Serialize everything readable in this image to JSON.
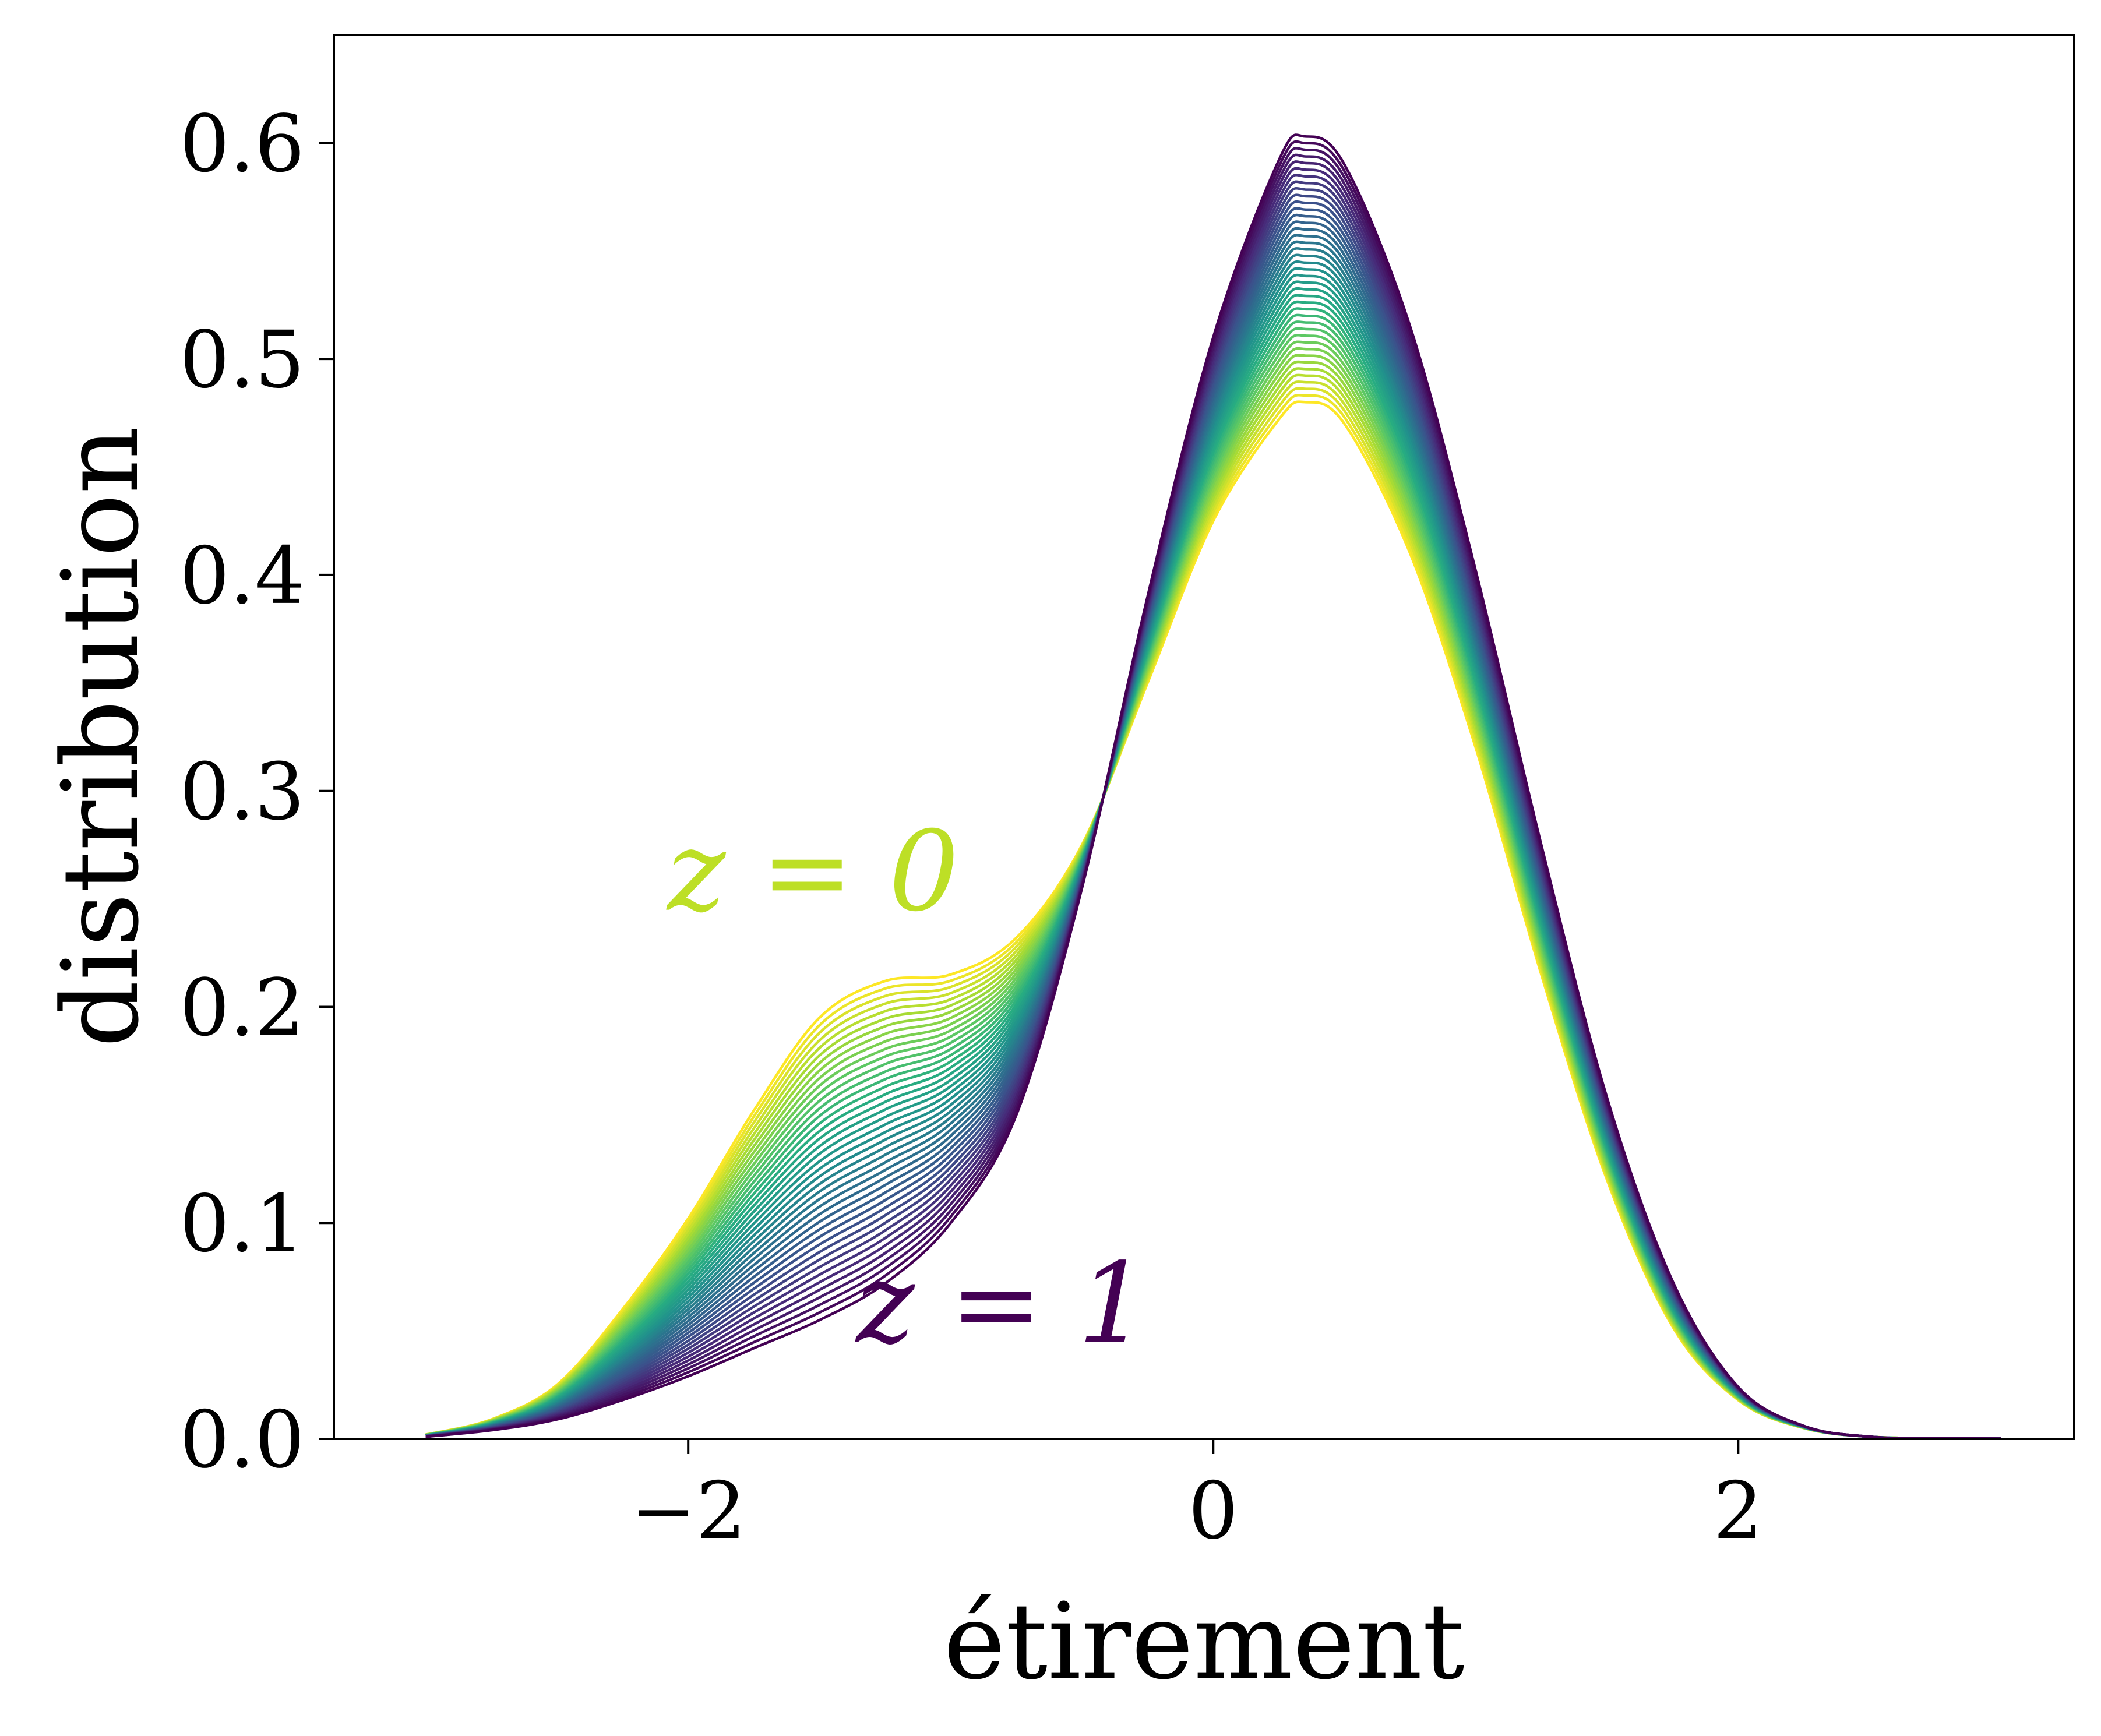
{
  "chart_data": {
    "type": "line",
    "xlabel": "étirement",
    "ylabel": "distribution",
    "xlim": [
      -3.35,
      3.28
    ],
    "ylim": [
      0.0,
      0.65
    ],
    "xticks": [
      {
        "value": -2,
        "label": "−2"
      },
      {
        "value": 0,
        "label": "0"
      },
      {
        "value": 2,
        "label": "2"
      }
    ],
    "yticks": [
      {
        "value": 0.0,
        "label": "0.0"
      },
      {
        "value": 0.1,
        "label": "0.1"
      },
      {
        "value": 0.2,
        "label": "0.2"
      },
      {
        "value": 0.3,
        "label": "0.3"
      },
      {
        "value": 0.4,
        "label": "0.4"
      },
      {
        "value": 0.5,
        "label": "0.5"
      },
      {
        "value": 0.6,
        "label": "0.6"
      }
    ],
    "grid": false,
    "colormap": "viridis",
    "colors": {
      "z0": "#fde725",
      "z1": "#440154",
      "annot_z0": "#bddf26",
      "annot_z1": "#440154"
    },
    "annotations": [
      {
        "text": "z = 0",
        "x": -2.08,
        "y": 0.245,
        "color": "#bddf26"
      },
      {
        "text": "z = 1",
        "x": -1.36,
        "y": 0.045,
        "color": "#440154"
      }
    ],
    "x": [
      -3.0,
      -2.75,
      -2.5,
      -2.25,
      -2.0,
      -1.75,
      -1.5,
      -1.25,
      -1.0,
      -0.75,
      -0.5,
      -0.25,
      0.0,
      0.25,
      0.35,
      0.5,
      0.75,
      1.0,
      1.25,
      1.5,
      1.75,
      2.0,
      2.25,
      2.5,
      2.75,
      3.0
    ],
    "z_steps": 40,
    "series": [
      {
        "name": "z = 0",
        "values": [
          0.002,
          0.009,
          0.025,
          0.06,
          0.102,
          0.152,
          0.195,
          0.212,
          0.215,
          0.232,
          0.275,
          0.35,
          0.425,
          0.472,
          0.48,
          0.47,
          0.41,
          0.32,
          0.215,
          0.12,
          0.052,
          0.018,
          0.005,
          0.001,
          0.0003,
          0.0001
        ]
      },
      {
        "name": "z = 1",
        "values": [
          0.001,
          0.004,
          0.009,
          0.018,
          0.029,
          0.042,
          0.055,
          0.072,
          0.1,
          0.15,
          0.255,
          0.39,
          0.51,
          0.592,
          0.603,
          0.59,
          0.515,
          0.402,
          0.275,
          0.158,
          0.073,
          0.024,
          0.006,
          0.001,
          0.0003,
          0.0001
        ]
      }
    ]
  }
}
